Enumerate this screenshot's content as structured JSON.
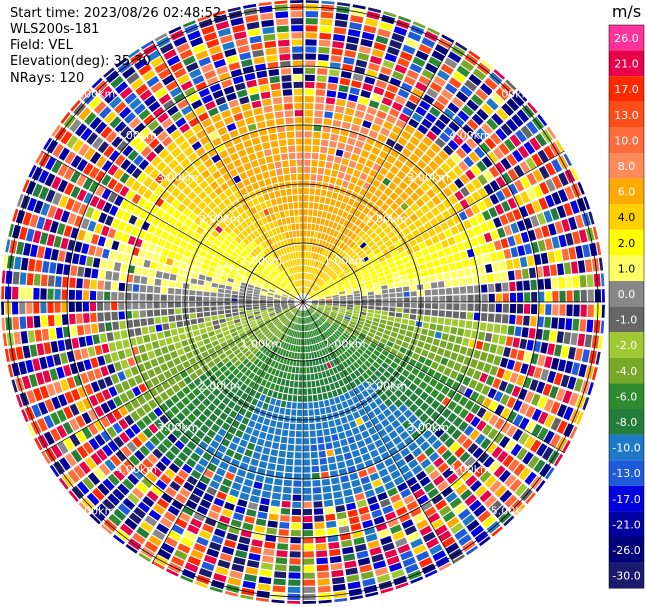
{
  "info": {
    "start_time": "Start time: 2023/08/26 02:48:52",
    "instrument": "WLS200s-181",
    "field": "Field: VEL",
    "elevation": "Elevation(deg): 35.30",
    "nrays": "NRays: 120"
  },
  "chart_data": {
    "type": "heatmap",
    "subtype": "radar-ppi",
    "field": "VEL",
    "units": "m/s",
    "n_rays": 120,
    "elevation_deg": 35.3,
    "range_rings_km": [
      1,
      2,
      3,
      4,
      5
    ],
    "range_labels": [
      "1.00km",
      "2.00km",
      "3.00km",
      "4.00km",
      "5.00km"
    ],
    "colorbar": {
      "unit_label": "m/s",
      "ticks": [
        "26.0",
        "21.0",
        "17.0",
        "13.0",
        "10.0",
        "8.0",
        "6.0",
        "4.0",
        "2.0",
        "1.0",
        "0.0",
        "-1.0",
        "-2.0",
        "-4.0",
        "-6.0",
        "-8.0",
        "-10.0",
        "-13.0",
        "-17.0",
        "-21.0",
        "-26.0",
        "-30.0"
      ],
      "colors": [
        "#ff3399",
        "#e8004a",
        "#ff2a00",
        "#ff4d1a",
        "#ff6b3d",
        "#ff8a5c",
        "#ffaa00",
        "#ffd000",
        "#ffff00",
        "#ffff66",
        "#888888",
        "#666666",
        "#a0c832",
        "#78a828",
        "#2e8b2e",
        "#247d3a",
        "#1e78c8",
        "#1e5adc",
        "#0000e0",
        "#0000a0",
        "#00007a",
        "#1a1a6e"
      ]
    },
    "velocity_pattern": {
      "approaching_sector_deg": [
        0,
        180
      ],
      "receding_sector_deg": [
        180,
        360
      ],
      "near_max_abs": 8.0,
      "noise_start_km": 3.5
    }
  }
}
